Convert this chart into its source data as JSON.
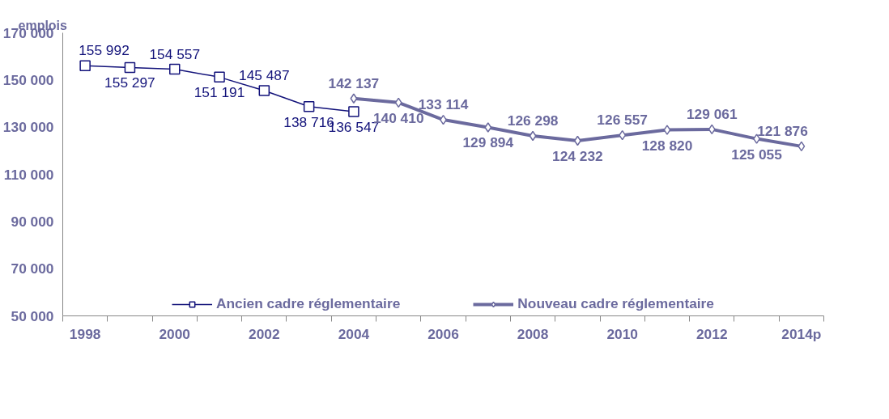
{
  "chart_data": {
    "type": "line",
    "ylabel": "emplois",
    "categories": [
      "1998",
      null,
      "2000",
      null,
      "2002",
      null,
      "2004",
      null,
      "2006",
      null,
      "2008",
      null,
      "2010",
      null,
      "2012",
      null,
      "2014p"
    ],
    "series": [
      {
        "name": "Ancien cadre réglementaire",
        "color": "#12127a",
        "marker": "square",
        "values": [
          155992,
          155297,
          154557,
          151191,
          145487,
          138716,
          136547,
          null,
          null,
          null,
          null,
          null,
          null,
          null,
          null,
          null,
          null
        ]
      },
      {
        "name": "Nouveau cadre réglementaire",
        "color": "#6b6a9e",
        "marker": "diamond",
        "values": [
          null,
          null,
          null,
          null,
          null,
          null,
          142137,
          140410,
          133114,
          129894,
          126298,
          124232,
          126557,
          128820,
          129061,
          125055,
          121876
        ]
      }
    ],
    "ylim": [
      50000,
      170000
    ],
    "yticks": [
      {
        "value": 50000,
        "label": "50 000"
      },
      {
        "value": 70000,
        "label": "70 000"
      },
      {
        "value": 90000,
        "label": "90 000"
      },
      {
        "value": 110000,
        "label": "110 000"
      },
      {
        "value": 130000,
        "label": "130 000"
      },
      {
        "value": 150000,
        "label": "150 000"
      },
      {
        "value": 170000,
        "label": "170 000"
      }
    ],
    "data_labels": true,
    "grid": false,
    "legend": "bottom",
    "line_style": "solid"
  }
}
